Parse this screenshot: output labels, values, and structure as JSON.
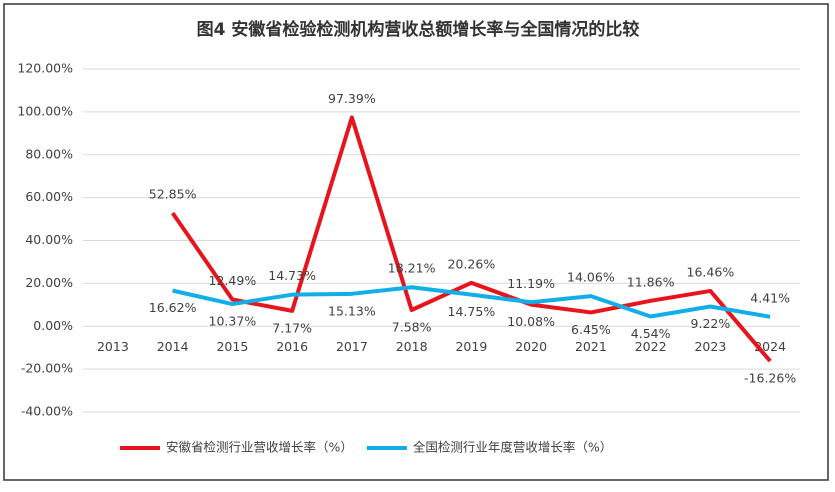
{
  "chart_data": {
    "type": "line",
    "title": "图4  安徽省检验检测机构营收总额增长率与全国情况的比较",
    "categories": [
      "2013",
      "2014",
      "2015",
      "2016",
      "2017",
      "2018",
      "2019",
      "2020",
      "2021",
      "2022",
      "2023",
      "2024"
    ],
    "series": [
      {
        "name": "安徽省检测行业营收增长率（%）",
        "color": "#e8141c",
        "values": [
          null,
          52.85,
          12.49,
          7.17,
          97.39,
          7.58,
          20.26,
          10.08,
          6.45,
          11.86,
          16.46,
          -16.26
        ],
        "value_labels": [
          null,
          "52.85%",
          "12.49%",
          "7.17%",
          "97.39%",
          "7.58%",
          "20.26%",
          "10.08%",
          "6.45%",
          "11.86%",
          "16.46%",
          "-16.26%"
        ]
      },
      {
        "name": "全国检测行业年度营收增长率（%）",
        "color": "#12aee8",
        "values": [
          null,
          16.62,
          10.37,
          14.73,
          15.13,
          18.21,
          14.75,
          11.19,
          14.06,
          4.54,
          9.22,
          4.41
        ],
        "value_labels": [
          null,
          "16.62%",
          "10.37%",
          "14.73%",
          "15.13%",
          "18.21%",
          "14.75%",
          "11.19%",
          "14.06%",
          "4.54%",
          "9.22%",
          "4.41%"
        ]
      }
    ],
    "ylim": [
      -40,
      120
    ],
    "yticks": [
      {
        "value": -40,
        "label": "-40.00%"
      },
      {
        "value": -20,
        "label": "-20.00%"
      },
      {
        "value": 0,
        "label": "0.00%"
      },
      {
        "value": 20,
        "label": "20.00%"
      },
      {
        "value": 40,
        "label": "40.00%"
      },
      {
        "value": 60,
        "label": "60.00%"
      },
      {
        "value": 80,
        "label": "80.00%"
      },
      {
        "value": 100,
        "label": "100.00%"
      },
      {
        "value": 120,
        "label": "120.00%"
      }
    ],
    "grid": true,
    "legend": "bottom"
  }
}
